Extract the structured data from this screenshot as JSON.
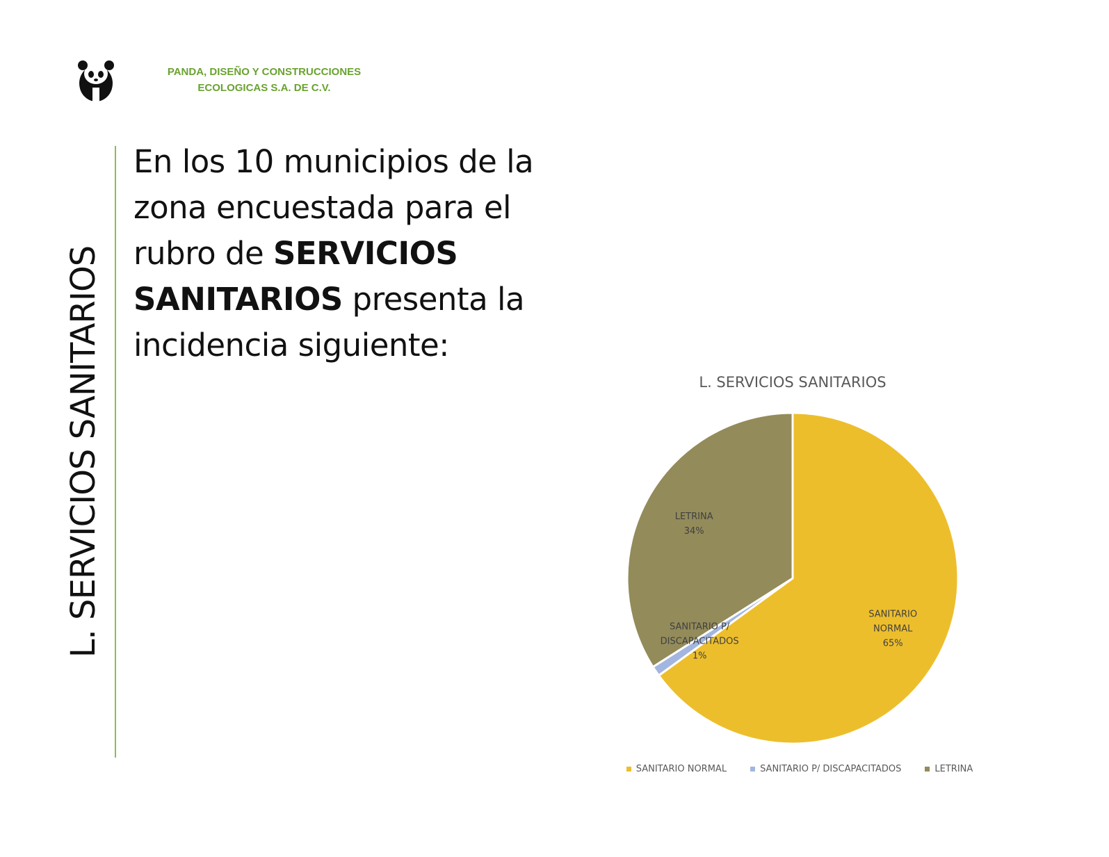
{
  "header": {
    "company_lines": [
      "PANDA, DISEÑO Y CONSTRUCCIONES",
      "ECOLOGICAS S.A. DE C.V."
    ]
  },
  "side_title": "L. SERVICIOS SANITARIOS",
  "body": {
    "runs": [
      {
        "text": "En los 10 municipios de la zona encuestada para el rubro de ",
        "bold": false
      },
      {
        "text": "SERVICIOS SANITARIOS",
        "bold": true
      },
      {
        "text": " presenta la incidencia siguiente:",
        "bold": false
      }
    ]
  },
  "chart_data": {
    "type": "pie",
    "title": "L. SERVICIOS SANITARIOS",
    "categories": [
      "SANITARIO NORMAL",
      "SANITARIO P/ DISCAPACITADOS",
      "LETRINA"
    ],
    "values": [
      65,
      1,
      34
    ],
    "value_labels": [
      "65%",
      "1%",
      "34%"
    ],
    "colors": [
      "#EDBE2C",
      "#A3B6E0",
      "#938B5A"
    ]
  }
}
